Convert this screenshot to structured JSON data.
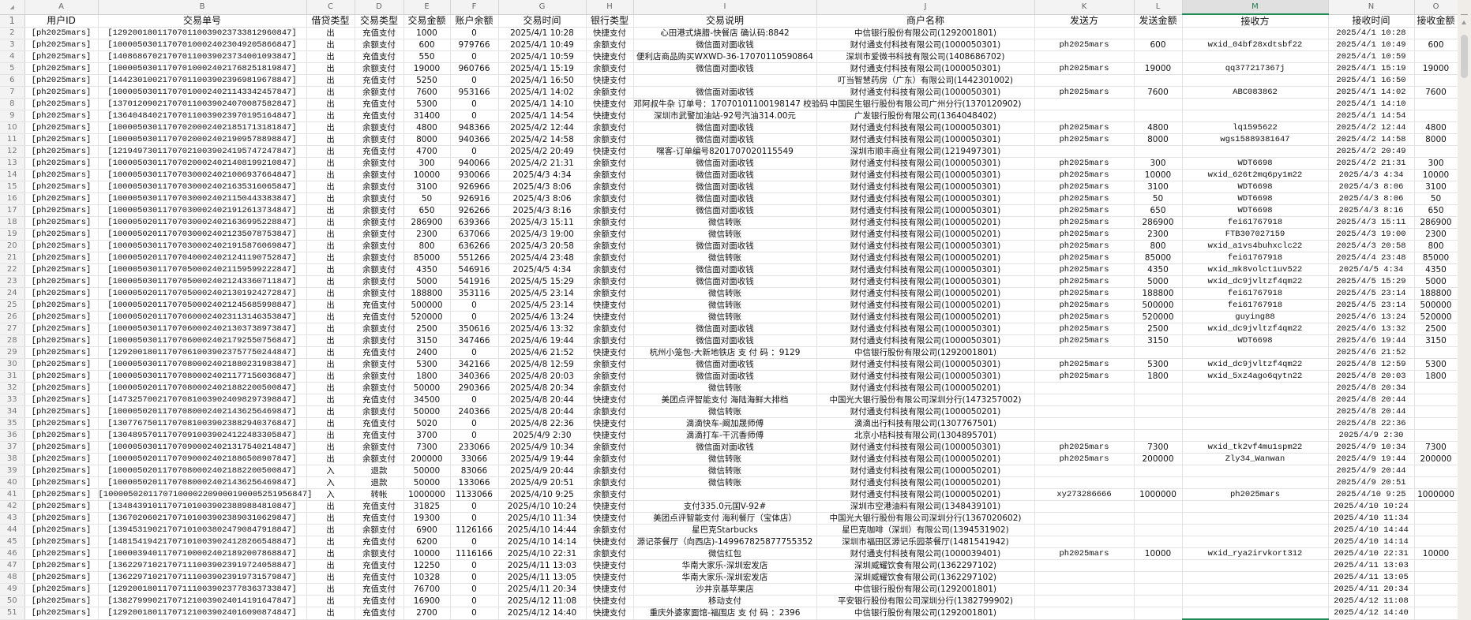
{
  "columns": [
    "A",
    "B",
    "C",
    "D",
    "E",
    "F",
    "G",
    "H",
    "I",
    "J",
    "K",
    "L",
    "M",
    "N",
    "O"
  ],
  "selected_column": "M",
  "corner_icon": "select-all-triangle-icon",
  "header_row": [
    "用户ID",
    "交易单号",
    "借贷类型",
    "交易类型",
    "交易金额",
    "账户余额",
    "交易时间",
    "银行类型",
    "交易说明",
    "商户名称",
    "发送方",
    "发送金额",
    "接收方",
    "接收时间",
    "接收金额"
  ],
  "rows": [
    [
      "[ph2025mars]",
      "[129200180117070110039023733812960847]",
      "出",
      "充值支付",
      "1000",
      "0",
      "2025/4/1 10:28",
      "快捷支付",
      "心田港式烧腊-快餐店 确认码:8842",
      "中信银行股份有限公司(1292001801)",
      "",
      "",
      "",
      "2025/4/1 10:28",
      ""
    ],
    [
      "[ph2025mars]",
      "[100005030117070100024023049205866847]",
      "出",
      "余额支付",
      "600",
      "979766",
      "2025/4/1 10:49",
      "余额支付",
      "微信面对面收钱",
      "财付通支付科技有限公司(1000050301)",
      "ph2025mars",
      "600",
      "wxid_04bf28xdtsbf22",
      "2025/4/1 10:49",
      "600"
    ],
    [
      "[ph2025mars]",
      "[140868670217070110039023734001093847]",
      "出",
      "充值支付",
      "550",
      "0",
      "2025/4/1 10:59",
      "快捷支付",
      "便利店商品购买WXWD-36-17070110590864",
      "深圳市爱微书科技有限公司(1408686702)",
      "",
      "",
      "",
      "2025/4/1 10:59",
      ""
    ],
    [
      "[ph2025mars]",
      "[100005030117070100024021768251819847]",
      "出",
      "余额支付",
      "19000",
      "960766",
      "2025/4/1 15:19",
      "余额支付",
      "微信面对面收钱",
      "财付通支付科技有限公司(1000050301)",
      "ph2025mars",
      "19000",
      "qq377217367j",
      "2025/4/1 15:19",
      "19000"
    ],
    [
      "[ph2025mars]",
      "[144230100217070110039023969819678847]",
      "出",
      "充值支付",
      "5250",
      "0",
      "2025/4/1 16:50",
      "快捷支付",
      "",
      "叮当智慧药房（广东）有限公司(1442301002)",
      "",
      "",
      "",
      "2025/4/1 16:50",
      ""
    ],
    [
      "[ph2025mars]",
      "[100005030117070100024021143342457847]",
      "出",
      "余额支付",
      "7600",
      "953166",
      "2025/4/1 14:02",
      "余额支付",
      "微信面对面收钱",
      "财付通支付科技有限公司(1000050301)",
      "ph2025mars",
      "7600",
      "ABC083862",
      "2025/4/1 14:02",
      "7600"
    ],
    [
      "[ph2025mars]",
      "[137012090217070110039024070087582847]",
      "出",
      "充值支付",
      "5300",
      "0",
      "2025/4/1 14:10",
      "快捷支付",
      "邓阿叔牛杂 订单号：17070101100198147 校验码",
      "中国民生银行股份有限公司广州分行(1370120902)",
      "",
      "",
      "",
      "2025/4/1 14:10",
      ""
    ],
    [
      "[ph2025mars]",
      "[136404840217070110039023970195164847]",
      "出",
      "充值支付",
      "31400",
      "0",
      "2025/4/1 14:54",
      "快捷支付",
      "深圳市武警加油站-92号汽油314.00元",
      "广发银行股份有限公司(1364048402)",
      "",
      "",
      "",
      "2025/4/1 14:54",
      ""
    ],
    [
      "[ph2025mars]",
      "[100005030117070200024021851713181847]",
      "出",
      "余额支付",
      "4800",
      "948366",
      "2025/4/2 12:44",
      "余额支付",
      "微信面对面收钱",
      "财付通支付科技有限公司(1000050301)",
      "ph2025mars",
      "4800",
      "lq1595622",
      "2025/4/2 12:44",
      "4800"
    ],
    [
      "[ph2025mars]",
      "[100005030117070200024021909578898847]",
      "出",
      "余额支付",
      "8000",
      "940366",
      "2025/4/2 14:58",
      "余额支付",
      "微信面对面收钱",
      "财付通支付科技有限公司(1000050301)",
      "ph2025mars",
      "8000",
      "wgs15889381647",
      "2025/4/2 14:58",
      "8000"
    ],
    [
      "[ph2025mars]",
      "[121949730117070210039024195747247847]",
      "出",
      "充值支付",
      "4700",
      "0",
      "2025/4/2 20:49",
      "快捷支付",
      "嘿客-订单编号8201707020115549",
      "深圳市顺丰商业有限公司(1219497301)",
      "",
      "",
      "",
      "2025/4/2 20:49",
      ""
    ],
    [
      "[ph2025mars]",
      "[100005030117070200024021408199210847]",
      "出",
      "余额支付",
      "300",
      "940066",
      "2025/4/2 21:31",
      "余额支付",
      "微信面对面收钱",
      "财付通支付科技有限公司(1000050301)",
      "ph2025mars",
      "300",
      "WDT6698",
      "2025/4/2 21:31",
      "300"
    ],
    [
      "[ph2025mars]",
      "[100005030117070300024021006937664847]",
      "出",
      "余额支付",
      "10000",
      "930066",
      "2025/4/3 4:34",
      "余额支付",
      "微信面对面收钱",
      "财付通支付科技有限公司(1000050301)",
      "ph2025mars",
      "10000",
      "wxid_626t2mq6py1m22",
      "2025/4/3 4:34",
      "10000"
    ],
    [
      "[ph2025mars]",
      "[100005030117070300024021635316065847]",
      "出",
      "余额支付",
      "3100",
      "926966",
      "2025/4/3 8:06",
      "余额支付",
      "微信面对面收钱",
      "财付通支付科技有限公司(1000050301)",
      "ph2025mars",
      "3100",
      "WDT6698",
      "2025/4/3 8:06",
      "3100"
    ],
    [
      "[ph2025mars]",
      "[100005030117070300024021150443383847]",
      "出",
      "余额支付",
      "50",
      "926916",
      "2025/4/3 8:06",
      "余额支付",
      "微信面对面收钱",
      "财付通支付科技有限公司(1000050301)",
      "ph2025mars",
      "50",
      "WDT6698",
      "2025/4/3 8:06",
      "50"
    ],
    [
      "[ph2025mars]",
      "[100005030117070300024021912613734847]",
      "出",
      "余额支付",
      "650",
      "926266",
      "2025/4/3 8:16",
      "余额支付",
      "微信面对面收钱",
      "财付通支付科技有限公司(1000050301)",
      "ph2025mars",
      "650",
      "WDT6698",
      "2025/4/3 8:16",
      "650"
    ],
    [
      "[ph2025mars]",
      "[100005020117070300024021636995228847]",
      "出",
      "余额支付",
      "286900",
      "639366",
      "2025/4/3 15:11",
      "余额支付",
      "微信转账",
      "财付通支付科技有限公司(1000050201)",
      "ph2025mars",
      "286900",
      "fei61767918",
      "2025/4/3 15:11",
      "286900"
    ],
    [
      "[ph2025mars]",
      "[100005020117070300024021235078753847]",
      "出",
      "余额支付",
      "2300",
      "637066",
      "2025/4/3 19:00",
      "余额支付",
      "微信转账",
      "财付通支付科技有限公司(1000050201)",
      "ph2025mars",
      "2300",
      "FTB307027159",
      "2025/4/3 19:00",
      "2300"
    ],
    [
      "[ph2025mars]",
      "[100005030117070300024021915876069847]",
      "出",
      "余额支付",
      "800",
      "636266",
      "2025/4/3 20:58",
      "余额支付",
      "微信面对面收钱",
      "财付通支付科技有限公司(1000050301)",
      "ph2025mars",
      "800",
      "wxid_a1vs4buhxclc22",
      "2025/4/3 20:58",
      "800"
    ],
    [
      "[ph2025mars]",
      "[100005020117070400024021241190752847]",
      "出",
      "余额支付",
      "85000",
      "551266",
      "2025/4/4 23:48",
      "余额支付",
      "微信转账",
      "财付通支付科技有限公司(1000050201)",
      "ph2025mars",
      "85000",
      "fei61767918",
      "2025/4/4 23:48",
      "85000"
    ],
    [
      "[ph2025mars]",
      "[100005030117070500024021159599222847]",
      "出",
      "余额支付",
      "4350",
      "546916",
      "2025/4/5 4:34",
      "余额支付",
      "微信面对面收钱",
      "财付通支付科技有限公司(1000050301)",
      "ph2025mars",
      "4350",
      "wxid_mk8volct1uv522",
      "2025/4/5 4:34",
      "4350"
    ],
    [
      "[ph2025mars]",
      "[100005030117070500024021243360711847]",
      "出",
      "余额支付",
      "5000",
      "541916",
      "2025/4/5 15:29",
      "余额支付",
      "微信面对面收钱",
      "财付通支付科技有限公司(1000050301)",
      "ph2025mars",
      "5000",
      "wxid_dc9jvltzf4qm22",
      "2025/4/5 15:29",
      "5000"
    ],
    [
      "[ph2025mars]",
      "[100005020117070500024021301924272847]",
      "出",
      "余额支付",
      "188800",
      "353116",
      "2025/4/5 23:14",
      "余额支付",
      "微信转账",
      "财付通支付科技有限公司(1000050201)",
      "ph2025mars",
      "188800",
      "fei61767918",
      "2025/4/5 23:14",
      "188800"
    ],
    [
      "[ph2025mars]",
      "[100005020117070500024021245685998847]",
      "出",
      "充值支付",
      "500000",
      "0",
      "2025/4/5 23:14",
      "快捷支付",
      "微信转账",
      "财付通支付科技有限公司(1000050201)",
      "ph2025mars",
      "500000",
      "fei61767918",
      "2025/4/5 23:14",
      "500000"
    ],
    [
      "[ph2025mars]",
      "[100005020117070600024023113146353847]",
      "出",
      "充值支付",
      "520000",
      "0",
      "2025/4/6 13:24",
      "快捷支付",
      "微信转账",
      "财付通支付科技有限公司(1000050201)",
      "ph2025mars",
      "520000",
      "guying88",
      "2025/4/6 13:24",
      "520000"
    ],
    [
      "[ph2025mars]",
      "[100005030117070600024021303738973847]",
      "出",
      "余额支付",
      "2500",
      "350616",
      "2025/4/6 13:32",
      "余额支付",
      "微信面对面收钱",
      "财付通支付科技有限公司(1000050301)",
      "ph2025mars",
      "2500",
      "wxid_dc9jvltzf4qm22",
      "2025/4/6 13:32",
      "2500"
    ],
    [
      "[ph2025mars]",
      "[100005030117070600024021792550756847]",
      "出",
      "余额支付",
      "3150",
      "347466",
      "2025/4/6 19:44",
      "余额支付",
      "微信面对面收钱",
      "财付通支付科技有限公司(1000050301)",
      "ph2025mars",
      "3150",
      "WDT6698",
      "2025/4/6 19:44",
      "3150"
    ],
    [
      "[ph2025mars]",
      "[129200180117070610039023757750244847]",
      "出",
      "充值支付",
      "2400",
      "0",
      "2025/4/6 21:52",
      "快捷支付",
      "杭州小笼包-大新地铁店 支 付 码 ：9129",
      "中信银行股份有限公司(1292001801)",
      "",
      "",
      "",
      "2025/4/6 21:52",
      ""
    ],
    [
      "[ph2025mars]",
      "[100005030117070800024021880231983847]",
      "出",
      "余额支付",
      "5300",
      "342166",
      "2025/4/8 12:59",
      "余额支付",
      "微信面对面收钱",
      "财付通支付科技有限公司(1000050301)",
      "ph2025mars",
      "5300",
      "wxid_dc9jvltzf4qm22",
      "2025/4/8 12:59",
      "5300"
    ],
    [
      "[ph2025mars]",
      "[100005030117070800024021177156036847]",
      "出",
      "余额支付",
      "1800",
      "340366",
      "2025/4/8 20:03",
      "余额支付",
      "微信面对面收钱",
      "财付通支付科技有限公司(1000050301)",
      "ph2025mars",
      "1800",
      "wxid_5xz4ago6qytn22",
      "2025/4/8 20:03",
      "1800"
    ],
    [
      "[ph2025mars]",
      "[100005020117070800024021882200500847]",
      "出",
      "余额支付",
      "50000",
      "290366",
      "2025/4/8 20:34",
      "余额支付",
      "微信转账",
      "财付通支付科技有限公司(1000050201)",
      "",
      "",
      "",
      "2025/4/8 20:34",
      ""
    ],
    [
      "[ph2025mars]",
      "[147325700217070810039024098297398847]",
      "出",
      "充值支付",
      "34500",
      "0",
      "2025/4/8 20:44",
      "快捷支付",
      "美团点评智能支付 海陆海鲜大排档",
      "中国光大银行股份有限公司深圳分行(1473257002)",
      "",
      "",
      "",
      "2025/4/8 20:44",
      ""
    ],
    [
      "[ph2025mars]",
      "[100005020117070800024021436256469847]",
      "出",
      "余额支付",
      "50000",
      "240366",
      "2025/4/8 20:44",
      "余额支付",
      "微信转账",
      "财付通支付科技有限公司(1000050201)",
      "",
      "",
      "",
      "2025/4/8 20:44",
      ""
    ],
    [
      "[ph2025mars]",
      "[130776750117070810039023882940376847]",
      "出",
      "充值支付",
      "5020",
      "0",
      "2025/4/8 22:36",
      "快捷支付",
      "滴滴快车-阚加晟师傅",
      "滴滴出行科技有限公司(1307767501)",
      "",
      "",
      "",
      "2025/4/8 22:36",
      ""
    ],
    [
      "[ph2025mars]",
      "[130489570117070910039024122483305847]",
      "出",
      "充值支付",
      "3700",
      "0",
      "2025/4/9 2:30",
      "快捷支付",
      "滴滴打车-干沉香师傅",
      "北京小桔科技有限公司(1304895701)",
      "",
      "",
      "",
      "2025/4/9 2:30",
      ""
    ],
    [
      "[ph2025mars]",
      "[100005030117070900024021317540214847]",
      "出",
      "余额支付",
      "7300",
      "233066",
      "2025/4/9 10:34",
      "余额支付",
      "微信面对面收钱",
      "财付通支付科技有限公司(1000050301)",
      "ph2025mars",
      "7300",
      "wxid_tk2vf4mu1spm22",
      "2025/4/9 10:34",
      "7300"
    ],
    [
      "[ph2025mars]",
      "[100005020117070900024021886508907847]",
      "出",
      "余额支付",
      "200000",
      "33066",
      "2025/4/9 19:44",
      "余额支付",
      "微信转账",
      "财付通支付科技有限公司(1000050201)",
      "ph2025mars",
      "200000",
      "Zly34_Wanwan",
      "2025/4/9 19:44",
      "200000"
    ],
    [
      "[ph2025mars]",
      "[100005020117070800024021882200500847]",
      "入",
      "退款",
      "50000",
      "83066",
      "2025/4/9 20:44",
      "余额支付",
      "微信转账",
      "财付通支付科技有限公司(1000050201)",
      "",
      "",
      "",
      "2025/4/9 20:44",
      ""
    ],
    [
      "[ph2025mars]",
      "[100005020117070800024021436256469847]",
      "入",
      "退款",
      "50000",
      "133066",
      "2025/4/9 20:51",
      "余额支付",
      "微信转账",
      "财付通支付科技有限公司(1000050201)",
      "",
      "",
      "",
      "2025/4/9 20:51",
      ""
    ],
    [
      "[ph2025mars]",
      "[10000502011707100002209000190005251956847]",
      "入",
      "转帐",
      "1000000",
      "1133066",
      "2025/4/10 9:25",
      "余额支付",
      "",
      "财付通支付科技有限公司(1000050201)",
      "xy273286666",
      "1000000",
      "ph2025mars",
      "2025/4/10 9:25",
      "1000000"
    ],
    [
      "[ph2025mars]",
      "[134843910117071010039023889884810847]",
      "出",
      "充值支付",
      "31825",
      "0",
      "2025/4/10 10:24",
      "快捷支付",
      "支付335.0元国V-92#",
      "深圳市空港油料有限公司(1348439101)",
      "",
      "",
      "",
      "2025/4/10 10:24",
      ""
    ],
    [
      "[ph2025mars]",
      "[136702060217071010039023890310629847]",
      "出",
      "充值支付",
      "19300",
      "0",
      "2025/4/10 11:34",
      "快捷支付",
      "美团点评智能支付 海利餐厅（宝体店）",
      "中国光大银行股份有限公司深圳分行(1367020602)",
      "",
      "",
      "",
      "2025/4/10 11:34",
      ""
    ],
    [
      "[ph2025mars]",
      "[139453190217071010038024790847918847]",
      "出",
      "余额支付",
      "6900",
      "1126166",
      "2025/4/10 14:44",
      "余额支付",
      "星巴克Starbucks",
      "星巴克咖啡（深圳）有限公司(1394531902)",
      "",
      "",
      "",
      "2025/4/10 14:44",
      ""
    ],
    [
      "[ph2025mars]",
      "[148154194217071010039024128266548847]",
      "出",
      "充值支付",
      "6200",
      "0",
      "2025/4/10 14:14",
      "快捷支付",
      "源记茶餐厅（向西店)-149967825877755352",
      "深圳市福田区源记乐园茶餐厅(1481541942)",
      "",
      "",
      "",
      "2025/4/10 14:14",
      ""
    ],
    [
      "[ph2025mars]",
      "[100003940117071000024021892007868847]",
      "出",
      "余额支付",
      "10000",
      "1116166",
      "2025/4/10 22:31",
      "余额支付",
      "微信红包",
      "财付通支付科技有限公司(1000039401)",
      "ph2025mars",
      "10000",
      "wxid_rya2irvkort312",
      "2025/4/10 22:31",
      "10000"
    ],
    [
      "[ph2025mars]",
      "[136229710217071110039023919724058847]",
      "出",
      "充值支付",
      "12250",
      "0",
      "2025/4/11 13:03",
      "快捷支付",
      "华南大家乐-深圳宏发店",
      "深圳威耀饮食有限公司(1362297102)",
      "",
      "",
      "",
      "2025/4/11 13:03",
      ""
    ],
    [
      "[ph2025mars]",
      "[136229710217071110039023919731579847]",
      "出",
      "充值支付",
      "10328",
      "0",
      "2025/4/11 13:05",
      "快捷支付",
      "华南大家乐-深圳宏发店",
      "深圳威耀饮食有限公司(1362297102)",
      "",
      "",
      "",
      "2025/4/11 13:05",
      ""
    ],
    [
      "[ph2025mars]",
      "[129200180117071110039023778363733847]",
      "出",
      "充值支付",
      "76700",
      "0",
      "2025/4/11 20:34",
      "快捷支付",
      "沙井京基苹果店",
      "中信银行股份有限公司(1292001801)",
      "",
      "",
      "",
      "2025/4/11 20:34",
      ""
    ],
    [
      "[ph2025mars]",
      "[138279990217071210039024014191647847]",
      "出",
      "充值支付",
      "16900",
      "0",
      "2025/4/12 11:08",
      "快捷支付",
      "移动支付",
      "平安银行股份有限公司深圳分行(1382799902)",
      "",
      "",
      "",
      "2025/4/12 11:08",
      ""
    ],
    [
      "[ph2025mars]",
      "[129200180117071210039024016090874847]",
      "出",
      "充值支付",
      "2700",
      "0",
      "2025/4/12 14:40",
      "快捷支付",
      "重庆外婆家面馆-福围店 支 付 码 ：2396",
      "中信银行股份有限公司(1292001801)",
      "",
      "",
      "",
      "2025/4/12 14:40",
      ""
    ]
  ],
  "colors": {
    "accent": "#1e8a55",
    "header_bg": "#f3f3f3",
    "gridline": "#e3e3e3"
  }
}
